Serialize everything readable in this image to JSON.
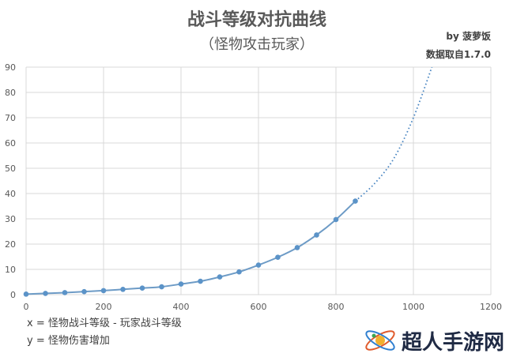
{
  "chart_data": {
    "type": "line",
    "title": "战斗等级对抗曲线",
    "subtitle": "（怪物攻击玩家）",
    "xlim": [
      0,
      1200
    ],
    "ylim": [
      0,
      90
    ],
    "x_ticks": [
      "0",
      "200",
      "400",
      "600",
      "800",
      "1000",
      "1200"
    ],
    "y_ticks": [
      "0",
      "10",
      "20",
      "30",
      "40",
      "50",
      "60",
      "70",
      "80",
      "90"
    ],
    "grid": true,
    "series": [
      {
        "x": [
          0,
          50,
          100,
          150,
          200,
          250,
          300,
          350,
          400,
          450,
          500,
          550,
          600,
          650,
          700,
          750,
          800,
          850
        ],
        "values": [
          0.2,
          0.5,
          0.8,
          1.2,
          1.6,
          2.1,
          2.6,
          3.1,
          4.2,
          5.3,
          7.0,
          9.0,
          11.7,
          14.8,
          18.6,
          23.6,
          29.7,
          37.0
        ],
        "trend_x": [
          850,
          900,
          950,
          1000,
          1050
        ],
        "trend_values": [
          37.0,
          44.0,
          54.0,
          70.0,
          91.0
        ]
      }
    ]
  },
  "credit": {
    "author": "by 菠萝饭",
    "source": "数据取自1.7.0"
  },
  "notes": {
    "x_def": "x = 怪物战斗等级 - 玩家战斗等级",
    "y_def": "y = 怪物伤害增加"
  },
  "watermark": {
    "text": "超人手游网"
  }
}
